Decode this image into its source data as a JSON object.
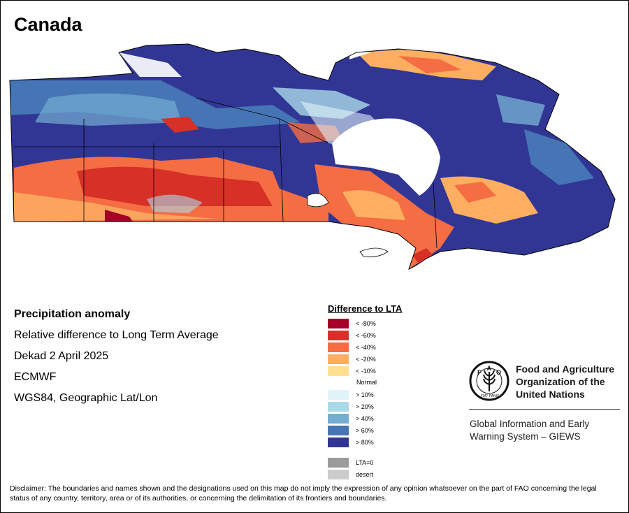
{
  "title": "Canada",
  "info": {
    "heading": "Precipitation anomaly",
    "subtitle": "Relative difference to Long Term Average",
    "period": "Dekad 2 April 2025",
    "source": "ECMWF",
    "projection": "WGS84, Geographic Lat/Lon"
  },
  "legend": {
    "title": "Difference to LTA",
    "dry": [
      {
        "label": "< -80%",
        "color": "#a50026"
      },
      {
        "label": "< -60%",
        "color": "#d73027"
      },
      {
        "label": "< -40%",
        "color": "#f46d43"
      },
      {
        "label": "< -20%",
        "color": "#fdae61"
      },
      {
        "label": "< -10%",
        "color": "#fee090"
      }
    ],
    "normal_label": "Normal",
    "wet": [
      {
        "label": "> 10%",
        "color": "#e0f3f8"
      },
      {
        "label": "> 20%",
        "color": "#abd9e9"
      },
      {
        "label": "> 40%",
        "color": "#74add1"
      },
      {
        "label": "> 60%",
        "color": "#4575b4"
      },
      {
        "label": "> 80%",
        "color": "#313695"
      }
    ],
    "special": [
      {
        "label": "LTA=0",
        "color": "#9b9b9b"
      },
      {
        "label": "desert",
        "color": "#cccccc"
      }
    ]
  },
  "fao": {
    "logo_letters": "FAO",
    "logo_motto": "FIAT PANIS",
    "name_lines": [
      "Food and Agriculture",
      "Organization of the",
      "United Nations"
    ],
    "system_lines": [
      "Global Information and Early",
      "Warning System – GIEWS"
    ]
  },
  "disclaimer": "Disclaimer: The boundaries and names shown and the designations used on this map do not imply the expression of any opinion whatsoever on the part of FAO concerning the legal status of any country, territory, area or of its authorities, or concerning the delimitation of its frontiers and boundaries."
}
